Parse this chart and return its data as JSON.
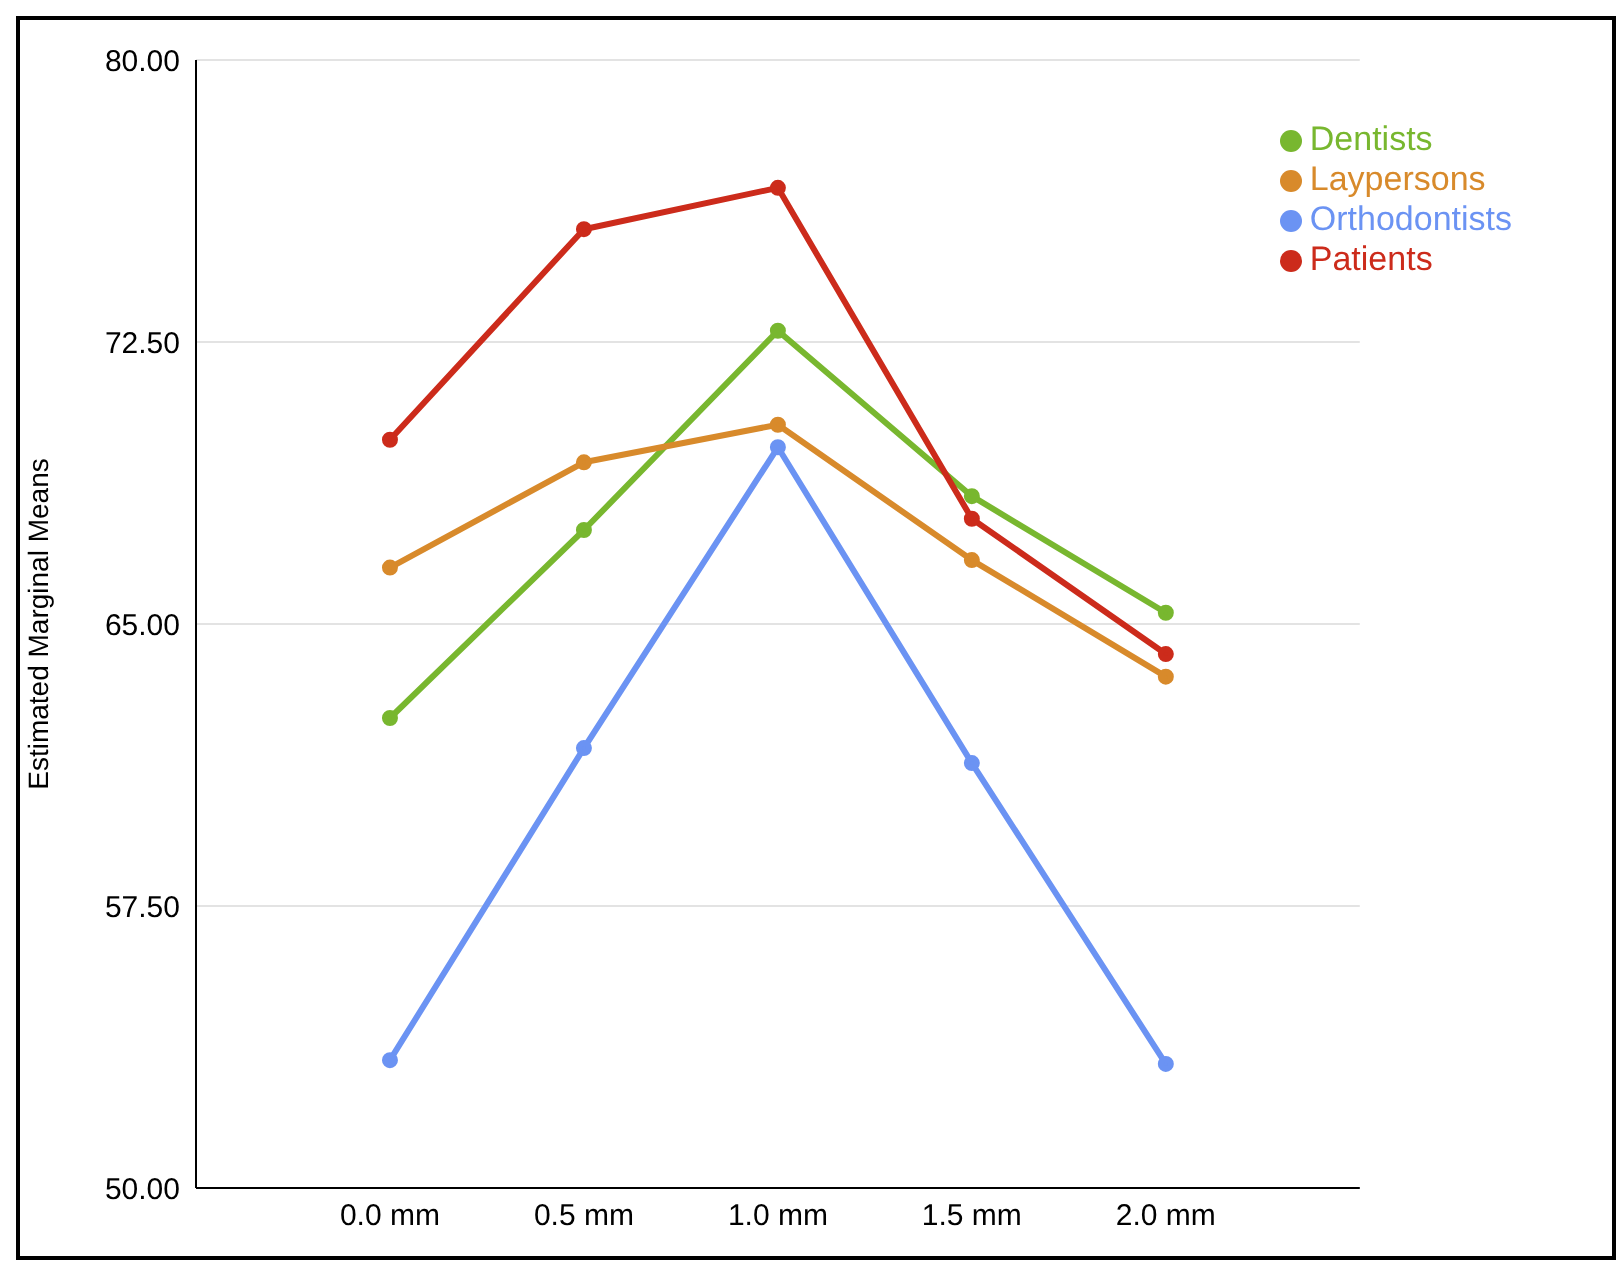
{
  "chart_data": {
    "type": "line",
    "ylabel": "Estimated Marginal Means",
    "categories": [
      "0.0 mm",
      "0.5 mm",
      "1.0 mm",
      "1.5 mm",
      "2.0 mm"
    ],
    "series": [
      {
        "name": "Orthodontists",
        "color": "#6b93f3",
        "values": [
          53.4,
          61.7,
          69.7,
          61.3,
          53.3
        ]
      },
      {
        "name": "Dentists",
        "color": "#78b72f",
        "values": [
          62.5,
          67.5,
          72.8,
          68.4,
          65.3
        ]
      },
      {
        "name": "Patients",
        "color": "#cc2b1b",
        "values": [
          69.9,
          75.5,
          76.6,
          67.8,
          64.2
        ]
      },
      {
        "name": "Laypersons",
        "color": "#d88a2b",
        "values": [
          66.5,
          69.3,
          70.3,
          66.7,
          63.6
        ]
      }
    ],
    "ylim": [
      50,
      80
    ],
    "yticks": [
      {
        "value": 50,
        "label": "50.00"
      },
      {
        "value": 57.5,
        "label": "57.50"
      },
      {
        "value": 65,
        "label": "65.00"
      },
      {
        "value": 72.5,
        "label": "72.50"
      },
      {
        "value": 80,
        "label": "80.00"
      }
    ],
    "grid": "y",
    "legend": "top right",
    "marker": "circle",
    "line_style": "solid"
  }
}
